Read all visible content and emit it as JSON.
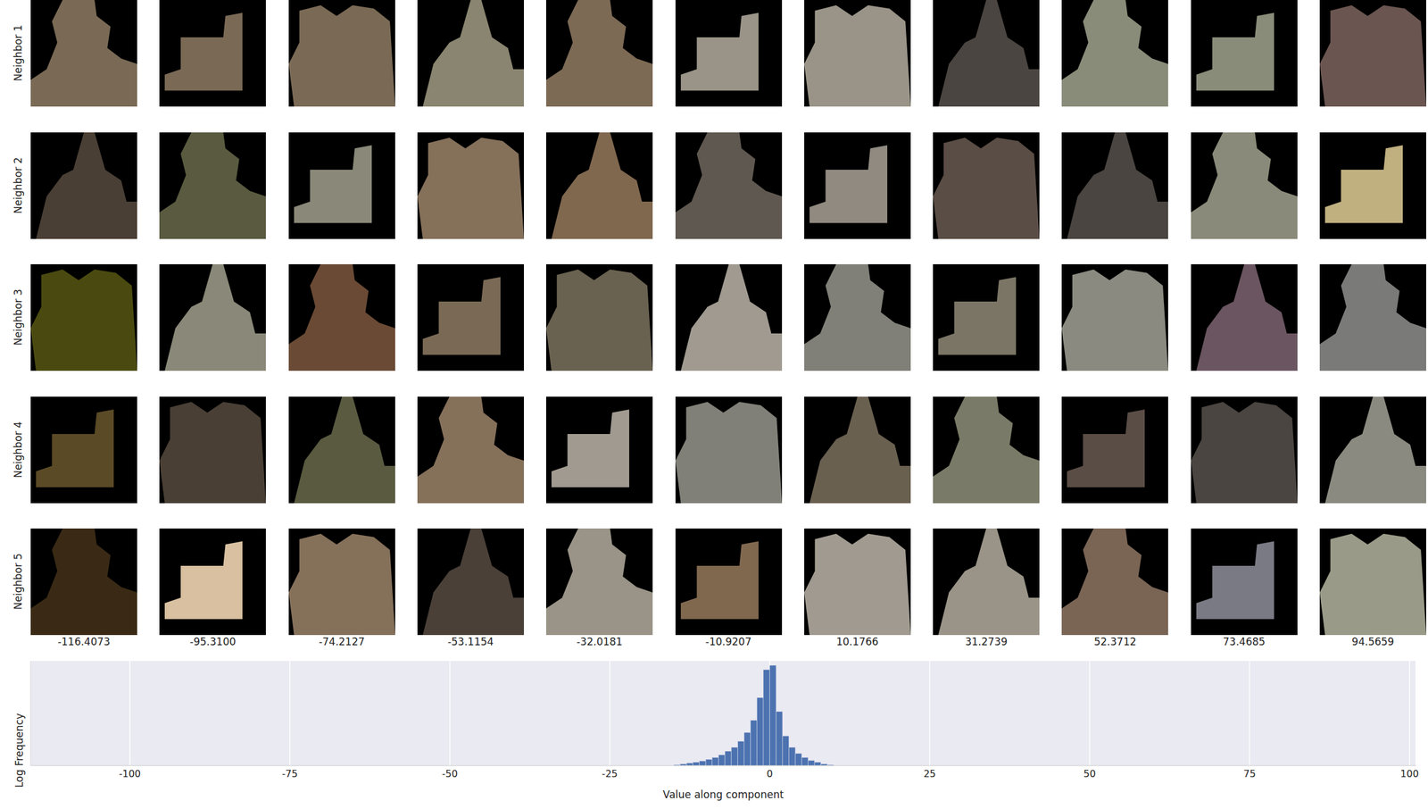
{
  "grid": {
    "row_labels": [
      "Neighbor 1",
      "Neighbor 2",
      "Neighbor 3",
      "Neighbor 4",
      "Neighbor 5"
    ],
    "column_values": [
      "-116.4073",
      "-95.3100",
      "-74.2127",
      "-53.1154",
      "-32.0181",
      "-10.9207",
      "10.1766",
      "31.2739",
      "52.3712",
      "73.4685",
      "94.5659"
    ]
  },
  "chart_data": {
    "type": "histogram",
    "x_label": "Value along component",
    "y_label": "Log Frequency",
    "bins": [
      -15,
      -14,
      -13,
      -12,
      -11,
      -10,
      -9,
      -8,
      -7,
      -6,
      -5,
      -4,
      -3,
      -2,
      -1,
      0,
      1,
      2,
      3,
      4,
      5,
      6,
      7,
      8,
      9,
      10
    ],
    "values": [
      0.05,
      0.1,
      0.15,
      0.2,
      0.27,
      0.36,
      0.47,
      0.62,
      0.83,
      1.05,
      1.4,
      1.9,
      2.6,
      3.9,
      5.5,
      5.75,
      3.1,
      1.7,
      1.05,
      0.7,
      0.47,
      0.3,
      0.2,
      0.1,
      0.05
    ],
    "color": "#4c72b0",
    "xlim": [
      -115.5,
      101
    ],
    "xticks": [
      -100,
      -75,
      -50,
      -25,
      0,
      25,
      50,
      75,
      100
    ],
    "ylim": [
      0,
      6
    ],
    "grid": true,
    "tick_labels": "x"
  }
}
